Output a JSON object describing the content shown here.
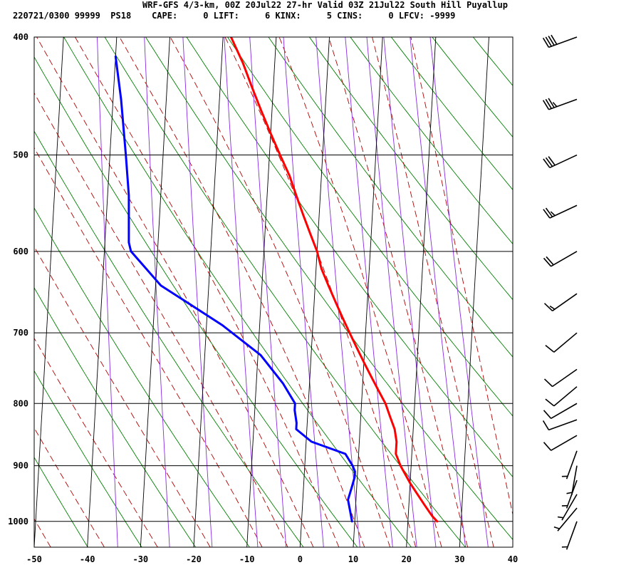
{
  "header": {
    "line1": "WRF-GFS 4/3-km, 00Z 20Jul22 27-hr Valid 03Z 21Jul22 South Hill Puyallup",
    "line2": "220721/0300 99999  PS18    CAPE:     0 LIFT:     6 KINX:     5 CINS:     0 LFCV: -9999"
  },
  "chart_data": {
    "type": "line",
    "xlim": [
      -50,
      40
    ],
    "x_ticks": [
      -50,
      -40,
      -30,
      -20,
      -10,
      0,
      10,
      20,
      30,
      40
    ],
    "x_tick_labels": [
      "-50",
      "-40",
      "-30",
      "-20",
      "-10",
      "0",
      "10",
      "20",
      "30",
      "40"
    ],
    "ylim": [
      1050,
      400
    ],
    "y_ticks": [
      400,
      500,
      600,
      700,
      800,
      900,
      1000
    ],
    "y_tick_labels": [
      "400",
      "500",
      "600",
      "700",
      "800",
      "900",
      "1000"
    ],
    "grid": true,
    "series": [
      {
        "color": "#ff0000",
        "points": [
          [
            25.5,
            1000
          ],
          [
            24.5,
            990
          ],
          [
            23,
            970
          ],
          [
            21.5,
            950
          ],
          [
            20,
            930
          ],
          [
            19,
            915
          ],
          [
            18,
            900
          ],
          [
            17,
            880
          ],
          [
            17,
            870
          ],
          [
            17,
            860
          ],
          [
            16.5,
            840
          ],
          [
            15.5,
            820
          ],
          [
            14.5,
            800
          ],
          [
            13,
            780
          ],
          [
            11.5,
            760
          ],
          [
            10,
            740
          ],
          [
            8.5,
            720
          ],
          [
            7,
            700
          ],
          [
            5.5,
            680
          ],
          [
            4,
            660
          ],
          [
            2.5,
            640
          ],
          [
            1,
            620
          ],
          [
            0,
            600
          ],
          [
            -1.5,
            580
          ],
          [
            -3,
            560
          ],
          [
            -4.5,
            540
          ],
          [
            -6,
            520
          ],
          [
            -8,
            500
          ],
          [
            -10,
            480
          ],
          [
            -12,
            460
          ],
          [
            -14,
            440
          ],
          [
            -16,
            420
          ],
          [
            -18.5,
            400
          ]
        ]
      },
      {
        "color": "#0000ff",
        "points": [
          [
            9.5,
            1000
          ],
          [
            9,
            980
          ],
          [
            8.5,
            960
          ],
          [
            9,
            940
          ],
          [
            9.5,
            920
          ],
          [
            9.5,
            910
          ],
          [
            9,
            900
          ],
          [
            7.5,
            880
          ],
          [
            1,
            860
          ],
          [
            -2,
            840
          ],
          [
            -2,
            830
          ],
          [
            -2.5,
            810
          ],
          [
            -2.5,
            800
          ],
          [
            -5,
            770
          ],
          [
            -9.5,
            730
          ],
          [
            -17,
            690
          ],
          [
            -29,
            640
          ],
          [
            -35,
            600
          ],
          [
            -35.5,
            590
          ],
          [
            -36,
            540
          ],
          [
            -37,
            500
          ],
          [
            -38.5,
            450
          ],
          [
            -40,
            415
          ]
        ]
      }
    ],
    "dry_adiabats_theta_K": [
      230,
      240,
      250,
      260,
      270,
      280,
      290,
      300,
      310,
      320,
      330,
      340,
      350,
      360,
      370,
      380,
      390,
      400,
      410,
      420,
      430,
      440,
      450
    ],
    "moist_adiabats_start_C": [
      -50,
      -40,
      -30,
      -20,
      -10,
      -5,
      0,
      5,
      10,
      15,
      20,
      25,
      30,
      35,
      40
    ],
    "mixing_ratio_lines_gkg": [
      0.2,
      0.5,
      1,
      2,
      3,
      5,
      8,
      12,
      16,
      20,
      28,
      36
    ],
    "wind_barbs": [
      {
        "p": 400,
        "dir": 250,
        "spd": 40
      },
      {
        "p": 450,
        "dir": 250,
        "spd": 35
      },
      {
        "p": 500,
        "dir": 245,
        "spd": 30
      },
      {
        "p": 550,
        "dir": 245,
        "spd": 25
      },
      {
        "p": 600,
        "dir": 240,
        "spd": 20
      },
      {
        "p": 650,
        "dir": 235,
        "spd": 15
      },
      {
        "p": 700,
        "dir": 230,
        "spd": 10
      },
      {
        "p": 750,
        "dir": 235,
        "spd": 10
      },
      {
        "p": 775,
        "dir": 230,
        "spd": 10
      },
      {
        "p": 800,
        "dir": 240,
        "spd": 10
      },
      {
        "p": 825,
        "dir": 250,
        "spd": 10
      },
      {
        "p": 850,
        "dir": 240,
        "spd": 10
      },
      {
        "p": 875,
        "dir": 200,
        "spd": 5
      },
      {
        "p": 900,
        "dir": 190,
        "spd": 5
      },
      {
        "p": 925,
        "dir": 200,
        "spd": 5
      },
      {
        "p": 950,
        "dir": 210,
        "spd": 5
      },
      {
        "p": 975,
        "dir": 220,
        "spd": 5
      },
      {
        "p": 1000,
        "dir": 200,
        "spd": 5
      }
    ]
  }
}
